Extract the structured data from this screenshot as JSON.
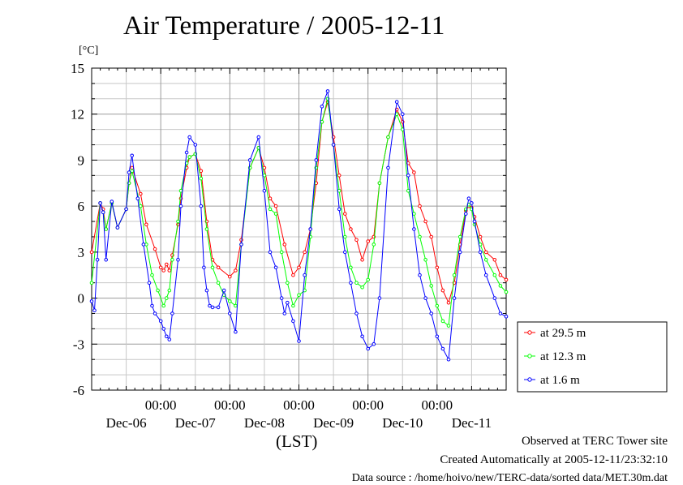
{
  "chart_data": {
    "type": "line",
    "title": "Air Temperature / 2005-12-11",
    "ylabel": "[°C]",
    "xlabel": "(LST)",
    "ylim": [
      -6,
      15
    ],
    "yticks": [
      15,
      12,
      9,
      6,
      3,
      0,
      -3,
      -6
    ],
    "ytick_labels": [
      "15",
      "12",
      "9",
      "6",
      "3",
      "0",
      "-3",
      "-6"
    ],
    "xlim_hours": [
      0,
      144
    ],
    "time_ticks": [
      "00:00",
      "00:00",
      "00:00",
      "00:00",
      "00:00"
    ],
    "date_labels": [
      "Dec-06",
      "Dec-07",
      "Dec-08",
      "Dec-09",
      "Dec-10",
      "Dec-11"
    ],
    "grid": true,
    "legend_position": "right",
    "series": [
      {
        "name": "at 29.5 m",
        "color": "#ff0000",
        "x": [
          0,
          3,
          4,
          5,
          7,
          9,
          12,
          13,
          14,
          17,
          19,
          22,
          24,
          25,
          26,
          27,
          28,
          30,
          31,
          33,
          34,
          36,
          38,
          40,
          42,
          44,
          48,
          50,
          52,
          55,
          58,
          60,
          62,
          64,
          67,
          70,
          72,
          74,
          76,
          78,
          80,
          82,
          84,
          86,
          88,
          90,
          92,
          94,
          96,
          98,
          100,
          103,
          106,
          108,
          110,
          112,
          114,
          116,
          118,
          120,
          122,
          124,
          126,
          128,
          130,
          131,
          132,
          133,
          135,
          137,
          140,
          142,
          144
        ],
        "values": [
          3.0,
          6.2,
          5.8,
          4.5,
          6.2,
          4.6,
          5.8,
          7.5,
          8.5,
          6.8,
          4.8,
          3.2,
          2.0,
          1.8,
          2.2,
          1.8,
          2.8,
          4.8,
          6.5,
          8.5,
          9.2,
          9.4,
          8.3,
          5.0,
          2.5,
          2.0,
          1.4,
          1.8,
          3.8,
          8.5,
          9.8,
          8.5,
          6.5,
          6.0,
          3.5,
          1.5,
          2.0,
          3.0,
          4.5,
          7.5,
          11.5,
          12.8,
          10.5,
          8.0,
          5.5,
          4.5,
          3.8,
          2.5,
          3.7,
          4.0,
          7.5,
          10.5,
          12.3,
          11.5,
          8.8,
          8.2,
          6.0,
          5.0,
          4.0,
          2.0,
          0.5,
          -0.3,
          1.0,
          3.5,
          5.7,
          6.0,
          5.9,
          5.3,
          4.0,
          3.0,
          2.5,
          1.5,
          1.2
        ]
      },
      {
        "name": "at 12.3 m",
        "color": "#00ff00",
        "x": [
          0,
          3,
          4,
          5,
          7,
          9,
          12,
          13,
          14,
          17,
          19,
          21,
          23,
          25,
          26,
          27,
          28,
          30,
          31,
          33,
          34,
          36,
          38,
          40,
          42,
          44,
          46,
          48,
          50,
          52,
          55,
          58,
          60,
          62,
          64,
          66,
          68,
          70,
          72,
          74,
          76,
          78,
          80,
          82,
          84,
          86,
          88,
          90,
          92,
          94,
          96,
          98,
          100,
          103,
          106,
          108,
          110,
          112,
          114,
          116,
          118,
          120,
          122,
          124,
          126,
          128,
          130,
          131,
          132,
          133,
          135,
          137,
          140,
          142,
          144
        ],
        "values": [
          1.0,
          6.2,
          5.6,
          4.5,
          6.2,
          4.6,
          5.8,
          7.5,
          8.3,
          6.0,
          3.5,
          1.5,
          0.5,
          -0.5,
          0.0,
          0.5,
          2.5,
          5.0,
          7.0,
          8.8,
          9.2,
          9.4,
          7.8,
          4.5,
          2.0,
          1.0,
          0.2,
          -0.2,
          -0.5,
          3.5,
          8.5,
          9.8,
          8.0,
          5.8,
          5.5,
          3.0,
          1.0,
          -0.5,
          0.2,
          0.5,
          4.0,
          8.5,
          11.5,
          13.0,
          10.0,
          7.0,
          4.0,
          2.0,
          1.0,
          0.7,
          1.2,
          3.5,
          7.5,
          10.5,
          12.0,
          11.0,
          7.0,
          5.5,
          4.0,
          2.5,
          0.8,
          -0.5,
          -1.5,
          -1.8,
          1.5,
          4.0,
          5.8,
          6.1,
          5.8,
          4.8,
          3.5,
          2.5,
          1.5,
          0.8,
          0.4
        ]
      },
      {
        "name": "at 1.6 m",
        "color": "#0000ff",
        "x": [
          0,
          1,
          2,
          3,
          4,
          5,
          7,
          9,
          12,
          13,
          14,
          16,
          18,
          20,
          21,
          22,
          24,
          25,
          26,
          27,
          28,
          30,
          31,
          33,
          34,
          36,
          38,
          39,
          40,
          41,
          42,
          44,
          46,
          48,
          50,
          52,
          55,
          58,
          60,
          62,
          64,
          66,
          67,
          68,
          70,
          72,
          74,
          76,
          78,
          80,
          82,
          84,
          86,
          88,
          90,
          92,
          94,
          96,
          98,
          100,
          103,
          106,
          108,
          110,
          112,
          114,
          116,
          118,
          120,
          122,
          124,
          126,
          128,
          130,
          131,
          132,
          133,
          135,
          137,
          140,
          142,
          144
        ],
        "values": [
          -0.2,
          -0.8,
          2.5,
          6.2,
          5.6,
          2.5,
          6.3,
          4.6,
          5.8,
          8.2,
          9.3,
          6.5,
          3.5,
          1.0,
          -0.5,
          -1.0,
          -1.5,
          -2.0,
          -2.5,
          -2.7,
          -1.0,
          2.5,
          6.0,
          9.5,
          10.5,
          10.0,
          6.0,
          2.0,
          0.5,
          -0.5,
          -0.6,
          -0.6,
          0.5,
          -1.0,
          -2.2,
          3.5,
          9.0,
          10.5,
          7.0,
          3.0,
          2.0,
          0.0,
          -1.0,
          -0.3,
          -1.5,
          -2.8,
          1.5,
          4.5,
          9.0,
          12.5,
          13.5,
          10.0,
          5.8,
          3.0,
          1.0,
          -1.0,
          -2.5,
          -3.3,
          -3.0,
          0.0,
          8.5,
          12.8,
          12.0,
          8.0,
          4.5,
          1.5,
          0.0,
          -1.0,
          -2.5,
          -3.3,
          -4.0,
          0.0,
          3.0,
          5.5,
          6.5,
          6.2,
          5.0,
          3.0,
          1.5,
          0.0,
          -1.0,
          -1.2
        ]
      }
    ]
  },
  "notes": {
    "site": "Observed at TERC Tower site",
    "created": "Created Automatically at 2005-12-11/23:32:10",
    "source": "Data source : /home/hoivo/new/TERC-data/sorted  data/MET.30m.dat"
  }
}
